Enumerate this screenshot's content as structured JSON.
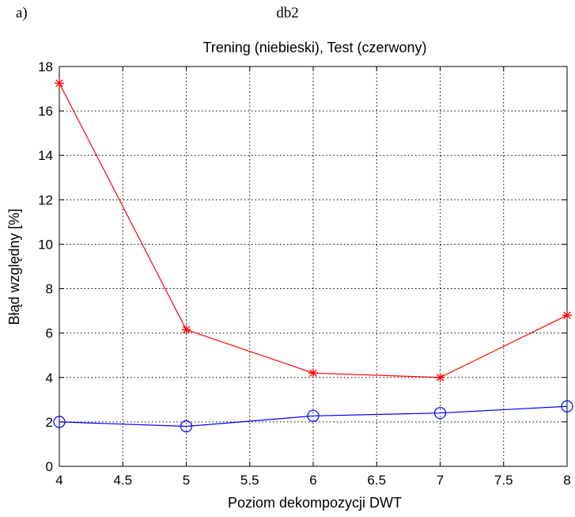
{
  "figure": {
    "panel_label": "a)",
    "title": "db2"
  },
  "chart_data": {
    "type": "line",
    "title": "Trening (niebieski), Test (czerwony)",
    "xlabel": "Poziom dekompozycji DWT",
    "ylabel": "Błąd względny [%]",
    "xlim": [
      4,
      8
    ],
    "ylim": [
      0,
      18
    ],
    "xticks": [
      "4",
      "4.5",
      "5",
      "5.5",
      "6",
      "6.5",
      "7",
      "7.5",
      "8"
    ],
    "yticks": [
      "0",
      "2",
      "4",
      "6",
      "8",
      "10",
      "12",
      "14",
      "16",
      "18"
    ],
    "grid": true,
    "x": [
      4,
      5,
      6,
      7,
      8
    ],
    "series": [
      {
        "values": [
          17.25,
          6.15,
          4.2,
          4.0,
          6.8
        ],
        "color": "#ff0000",
        "marker": "asterisk"
      },
      {
        "values": [
          2.0,
          1.8,
          2.27,
          2.4,
          2.7
        ],
        "color": "#0000ff",
        "marker": "circle"
      }
    ]
  }
}
